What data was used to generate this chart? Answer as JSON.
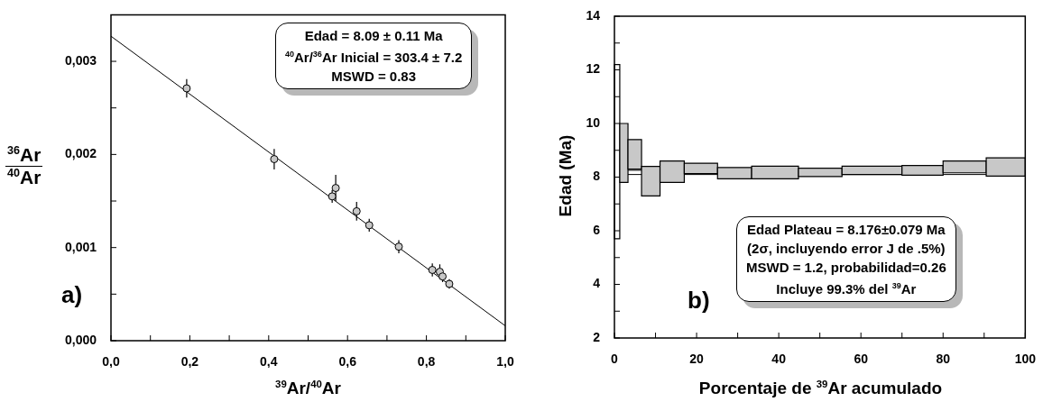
{
  "chart_data": [
    {
      "type": "scatter",
      "xlabel": "$^{39}$Ar/$^{40}$Ar",
      "ylabel": "$^{36}$Ar\n$^{40}$Ar",
      "marker": "circle",
      "xlim": [
        0,
        1
      ],
      "xticks": [
        {
          "value": 0,
          "label": "0,0"
        },
        {
          "value": 0.1,
          "label": null
        },
        {
          "value": 0.2,
          "label": "0,2"
        },
        {
          "value": 0.3,
          "label": null
        },
        {
          "value": 0.4,
          "label": "0,4"
        },
        {
          "value": 0.5,
          "label": null
        },
        {
          "value": 0.6,
          "label": "0,6"
        },
        {
          "value": 0.7,
          "label": null
        },
        {
          "value": 0.8,
          "label": "0,8"
        },
        {
          "value": 0.9,
          "label": null
        },
        {
          "value": 1,
          "label": "1,0"
        }
      ],
      "ylim": [
        0,
        0.0035
      ],
      "yticks": [
        {
          "value": 0,
          "label": "0,000"
        },
        {
          "value": 0.0005,
          "label": null
        },
        {
          "value": 0.001,
          "label": "0,001"
        },
        {
          "value": 0.0015,
          "label": null
        },
        {
          "value": 0.002,
          "label": "0,002"
        },
        {
          "value": 0.0025,
          "label": null
        },
        {
          "value": 0.003,
          "label": "0,003"
        }
      ],
      "series": [
        {
          "type": "scatter",
          "color": "#c8c8c8",
          "x": [
            0.192,
            0.414,
            0.561,
            0.57,
            0.623,
            0.655,
            0.73,
            0.815,
            0.834,
            0.841,
            0.858
          ],
          "values": [
            0.00271,
            0.00195,
            0.00155,
            0.00164,
            0.00139,
            0.00124,
            0.00101,
            0.00076,
            0.00074,
            0.00069,
            0.00061
          ],
          "errors": [
            0.0001,
            0.00011,
            7e-05,
            0.00014,
            0.0001,
            7e-05,
            7e-05,
            7e-05,
            8e-05,
            6e-05,
            5e-05
          ]
        },
        {
          "type": "line",
          "color": "#000000",
          "marker": "none",
          "x": [
            0,
            1
          ],
          "values": [
            0.00327,
            0.00016
          ]
        }
      ],
      "annotations": [
        "Edad = 8.09 ± 0.11 Ma",
        "$^{40}$Ar/$^{36}$Ar Inicial = 303.4 ± 7.2",
        "MSWD = 0.83",
        "a)"
      ]
    },
    {
      "type": "histogram",
      "xlabel": "Porcentaje de $^{39}$Ar acumulado",
      "ylabel": "Edad (Ma)",
      "xlim": [
        0,
        100
      ],
      "xticks": [
        0,
        {
          "value": 10,
          "label": null
        },
        20,
        {
          "value": 30,
          "label": null
        },
        40,
        {
          "value": 50,
          "label": null
        },
        60,
        {
          "value": 70,
          "label": null
        },
        80,
        {
          "value": 90,
          "label": null
        },
        100
      ],
      "ylim": [
        2,
        14
      ],
      "yticks": [
        2,
        {
          "value": 3,
          "label": null
        },
        4,
        {
          "value": 5,
          "label": null
        },
        6,
        {
          "value": 7,
          "label": null
        },
        8,
        {
          "value": 9,
          "label": null
        },
        10,
        {
          "value": 11,
          "label": null
        },
        12,
        {
          "value": 13,
          "label": null
        },
        14
      ],
      "bins": [
        0,
        1.3,
        3.3,
        6.6,
        11.1,
        17.0,
        25.1,
        33.4,
        44.8,
        55.4,
        70.0,
        80.0,
        90.5,
        100
      ],
      "base": [
        5.7,
        7.8,
        8.3,
        7.3,
        7.8,
        8.13,
        7.94,
        7.94,
        8.02,
        8.1,
        8.07,
        8.16,
        8.04
      ],
      "values": [
        6.5,
        2.2,
        1.1,
        1.1,
        0.8,
        0.39,
        0.42,
        0.47,
        0.31,
        0.31,
        0.36,
        0.44,
        0.68
      ],
      "colors": [
        "#ffffff",
        "#c8c8c8",
        "#c8c8c8",
        "#c8c8c8",
        "#c8c8c8",
        "#c8c8c8",
        "#c8c8c8",
        "#c8c8c8",
        "#c8c8c8",
        "#c8c8c8",
        "#c8c8c8",
        "#c8c8c8",
        "#c8c8c8"
      ],
      "ref_lines": [
        {
          "axis": "y",
          "value": 8.097,
          "color": "#000000"
        },
        {
          "axis": "y",
          "value": 8.255,
          "color": "#000000"
        }
      ],
      "annotations": [
        "Edad Plateau = 8.176±0.079 Ma",
        "(2σ, incluyendo error J de .5%)",
        "MSWD = 1.2, probabilidad=0.26",
        "Incluye 99.3% del $^{39}$Ar",
        "b)"
      ]
    }
  ]
}
